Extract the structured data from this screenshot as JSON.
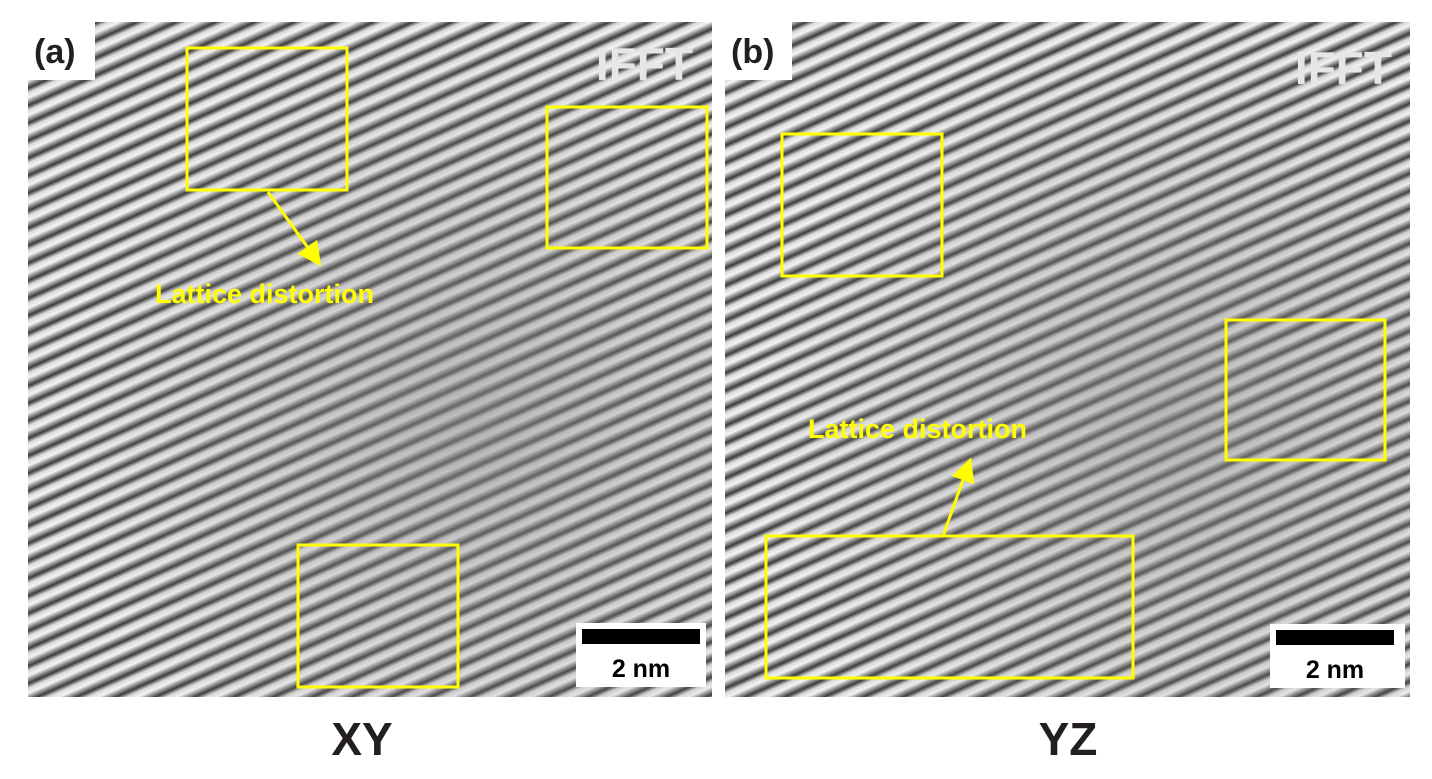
{
  "panels": [
    {
      "label": "(a)",
      "overlay": "IFFT",
      "annotation": "Lattice distortion",
      "scale_bar": "2 nm",
      "caption": "XY"
    },
    {
      "label": "(b)",
      "overlay": "IFFT",
      "annotation": "Lattice distortion",
      "scale_bar": "2 nm",
      "caption": "YZ"
    }
  ]
}
